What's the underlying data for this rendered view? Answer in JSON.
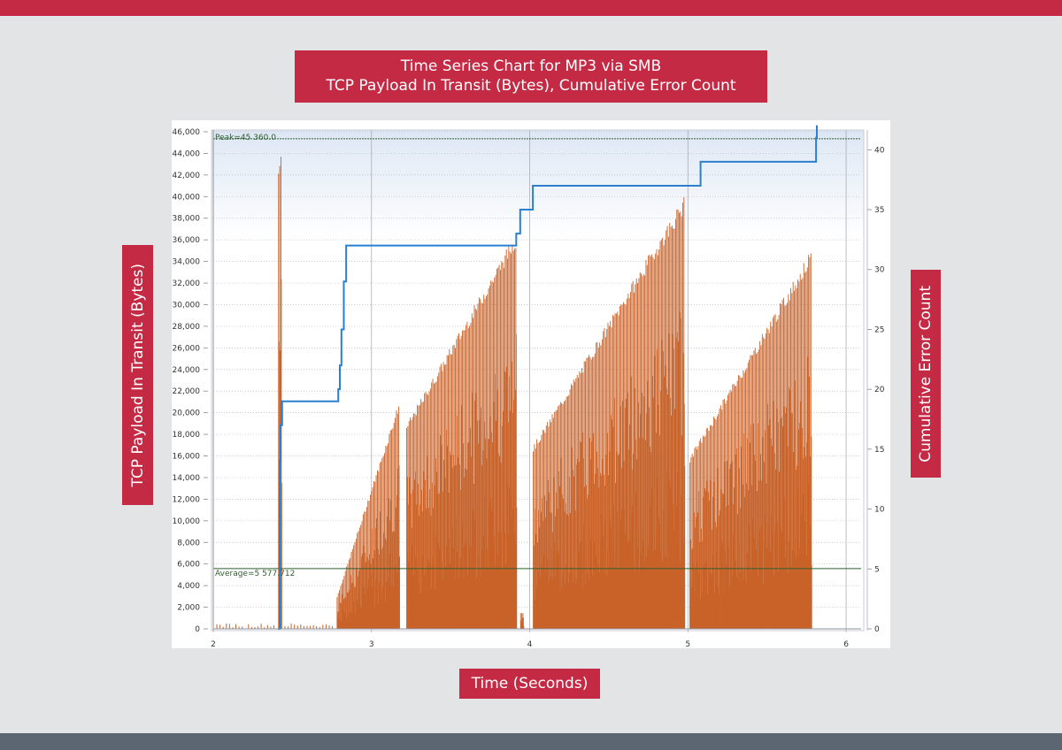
{
  "colors": {
    "accent": "#c52a45",
    "footer": "#5c6572",
    "background": "#e3e4e6",
    "bars": "#c8632a",
    "cumulative_line": "#2a7fcf",
    "reference_lines": "#2f5d2f"
  },
  "header": {
    "title_line1": "Time Series Chart for MP3 via SMB",
    "title_line2": "TCP Payload In Transit (Bytes), Cumulative Error Count"
  },
  "axis_labels": {
    "y_left": "TCP Payload In Transit (Bytes)",
    "y_right": "Cumulative Error Count",
    "x": "Time (Seconds)"
  },
  "annotations": {
    "peak": "Peak=45 360.0",
    "average": "Average=5 577.712"
  },
  "chart_data": {
    "type": "bar",
    "title": "Time Series Chart for MP3 via SMB",
    "subtitle": "TCP Payload In Transit (Bytes), Cumulative Error Count",
    "xlabel": "Time (Seconds)",
    "ylabel": "TCP Payload In Transit (Bytes)",
    "y2label": "Cumulative Error Count",
    "xlim": [
      2,
      6.05
    ],
    "ylim": [
      0,
      46000
    ],
    "y2lim": [
      0,
      41.5
    ],
    "x_ticks": [
      2,
      3,
      4,
      5,
      6
    ],
    "y_ticks": [
      0,
      2000,
      4000,
      6000,
      8000,
      10000,
      12000,
      14000,
      16000,
      18000,
      20000,
      22000,
      24000,
      26000,
      28000,
      30000,
      32000,
      34000,
      36000,
      38000,
      40000,
      42000,
      44000,
      46000
    ],
    "y_tick_labels": [
      "0",
      "2,000",
      "4,000",
      "6,000",
      "8,000",
      "10,000",
      "12,000",
      "14,000",
      "16,000",
      "18,000",
      "20,000",
      "22,000",
      "24,000",
      "26,000",
      "28,000",
      "30,000",
      "32,000",
      "34,000",
      "36,000",
      "38,000",
      "40,000",
      "42,000",
      "44,000",
      "46,000"
    ],
    "y2_ticks": [
      0,
      5,
      10,
      15,
      20,
      25,
      30,
      35,
      40
    ],
    "grid": true,
    "peak_value": 45360.0,
    "average_value": 5577.712,
    "payload_series": {
      "name": "TCP Payload In Transit (Bytes)",
      "bursts": [
        {
          "start": 2.41,
          "end": 2.43,
          "peak_start": 43000,
          "peak_end": 45360
        },
        {
          "start": 2.78,
          "end": 3.18,
          "peak_start": 3000,
          "peak_end": 21000
        },
        {
          "start": 3.22,
          "end": 3.92,
          "peak_start": 19000,
          "peak_end": 36700
        },
        {
          "start": 3.94,
          "end": 3.96,
          "peak_start": 1500,
          "peak_end": 1500
        },
        {
          "start": 4.02,
          "end": 4.98,
          "peak_start": 17000,
          "peak_end": 40000
        },
        {
          "start": 5.01,
          "end": 5.78,
          "peak_start": 16000,
          "peak_end": 35000
        }
      ]
    },
    "cumulative_series": {
      "name": "Cumulative Error Count",
      "x": [
        2.41,
        2.42,
        2.425,
        2.435,
        2.77,
        2.79,
        2.8,
        2.81,
        2.825,
        2.84,
        3.9,
        3.915,
        3.94,
        4.02,
        4.99,
        5.08,
        5.81,
        5.815
      ],
      "y": [
        0,
        14,
        17,
        19,
        19,
        20,
        22,
        25,
        29,
        32,
        32,
        33,
        35,
        37,
        37,
        39,
        41,
        42
      ]
    }
  }
}
